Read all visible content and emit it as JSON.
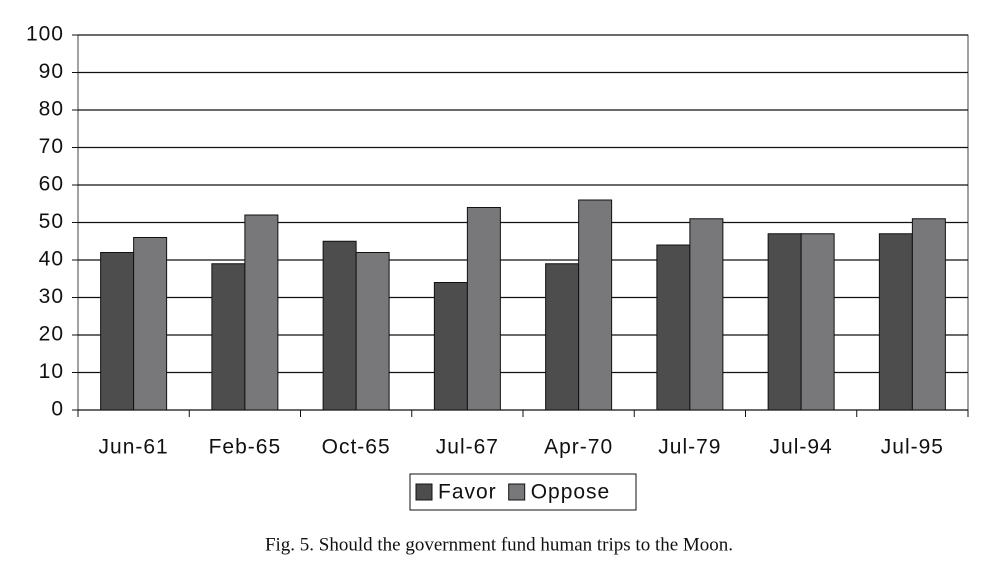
{
  "chart_data": {
    "type": "bar",
    "caption": "Fig. 5. Should the government fund human trips to the Moon.",
    "categories": [
      "Jun-61",
      "Feb-65",
      "Oct-65",
      "Jul-67",
      "Apr-70",
      "Jul-79",
      "Jul-94",
      "Jul-95"
    ],
    "series": [
      {
        "name": "Favor",
        "color": "#4d4d4d",
        "values": [
          42,
          39,
          45,
          34,
          39,
          44,
          47,
          47
        ]
      },
      {
        "name": "Oppose",
        "color": "#78787a",
        "values": [
          46,
          52,
          42,
          54,
          56,
          51,
          47,
          51
        ]
      }
    ],
    "ylim": [
      0,
      100
    ],
    "yticks": [
      0,
      10,
      20,
      30,
      40,
      50,
      60,
      70,
      80,
      90,
      100
    ],
    "grid": true
  }
}
